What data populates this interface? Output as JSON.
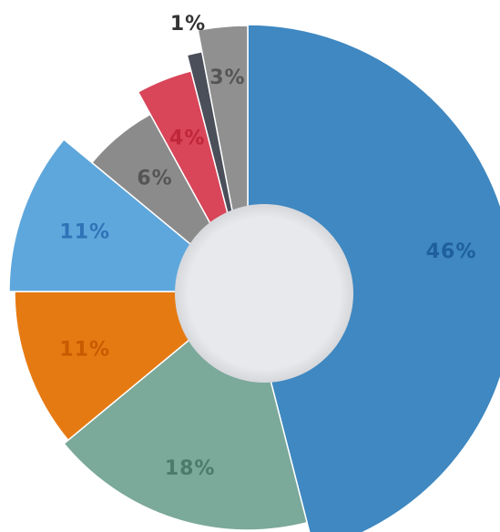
{
  "chart_data": {
    "type": "pie",
    "values": [
      46,
      18,
      11,
      11,
      6,
      4,
      1,
      3
    ],
    "value_labels": [
      "46%",
      "18%",
      "11%",
      "11%",
      "6%",
      "4%",
      "1%",
      "3%"
    ],
    "colors": [
      "#3f88c1",
      "#7ba99a",
      "#e67a12",
      "#5ea7dc",
      "#8b8b8c",
      "#d94559",
      "#4a4f5a",
      "#909090"
    ],
    "label_colors": [
      "#1f5f9e",
      "#4d7a6b",
      "#c85a00",
      "#2f73b8",
      "#555555",
      "#c0263a",
      "#333333",
      "#555555"
    ]
  }
}
